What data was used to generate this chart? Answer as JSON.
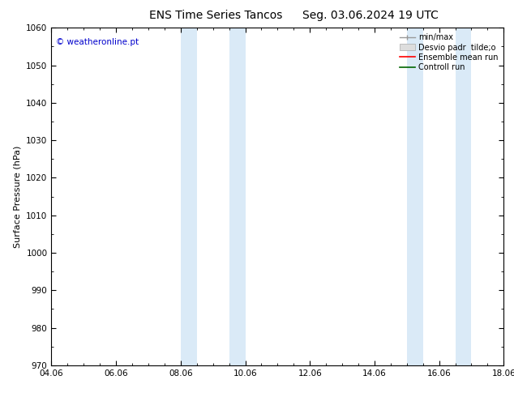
{
  "title_left": "ENS Time Series Tancos",
  "title_right": "Seg. 03.06.2024 19 UTC",
  "ylabel": "Surface Pressure (hPa)",
  "ylim": [
    970,
    1060
  ],
  "yticks": [
    970,
    980,
    990,
    1000,
    1010,
    1020,
    1030,
    1040,
    1050,
    1060
  ],
  "xlim_num": [
    0,
    14
  ],
  "xtick_labels": [
    "04.06",
    "06.06",
    "08.06",
    "10.06",
    "12.06",
    "14.06",
    "16.06",
    "18.06"
  ],
  "xtick_positions": [
    0,
    2,
    4,
    6,
    8,
    10,
    12,
    14
  ],
  "shaded_bands": [
    {
      "xmin": 4.0,
      "xmax": 4.5
    },
    {
      "xmin": 5.5,
      "xmax": 6.0
    },
    {
      "xmin": 11.0,
      "xmax": 11.5
    },
    {
      "xmin": 12.5,
      "xmax": 13.0
    }
  ],
  "shade_color": "#daeaf7",
  "background_color": "#ffffff",
  "watermark": "© weatheronline.pt",
  "legend_label_minmax": "min/max",
  "legend_label_desvio": "Desvio padr  tilde;o",
  "legend_label_ensemble": "Ensemble mean run",
  "legend_label_control": "Controll run",
  "title_fontsize": 10,
  "tick_fontsize": 7.5,
  "ylabel_fontsize": 8,
  "legend_fontsize": 7,
  "figsize": [
    6.34,
    4.9
  ],
  "dpi": 100
}
